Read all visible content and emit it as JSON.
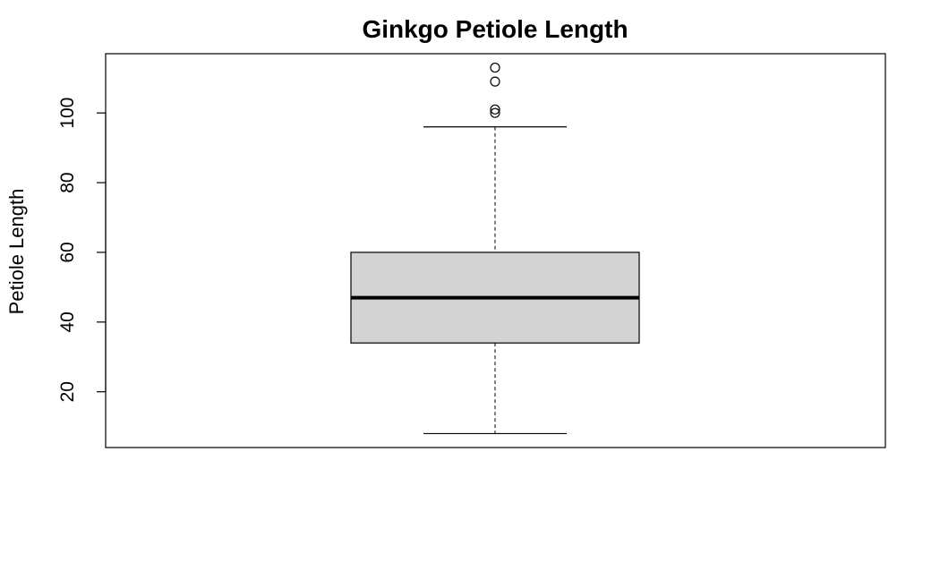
{
  "chart_data": {
    "type": "boxplot",
    "title": "Ginkgo Petiole Length",
    "xlabel": "",
    "ylabel": "Petiole Length",
    "ylim": [
      4,
      117
    ],
    "yticks": [
      20,
      40,
      60,
      80,
      100
    ],
    "yticklabels": [
      "20",
      "40",
      "60",
      "80",
      "100"
    ],
    "grid": false,
    "legend": "none",
    "box": {
      "min": 8,
      "q1": 34,
      "median": 47,
      "q3": 60,
      "max": 96,
      "outliers": [
        100,
        101,
        109,
        113
      ]
    },
    "colors": {
      "box_fill": "#d3d3d3",
      "stroke": "#000000"
    }
  }
}
